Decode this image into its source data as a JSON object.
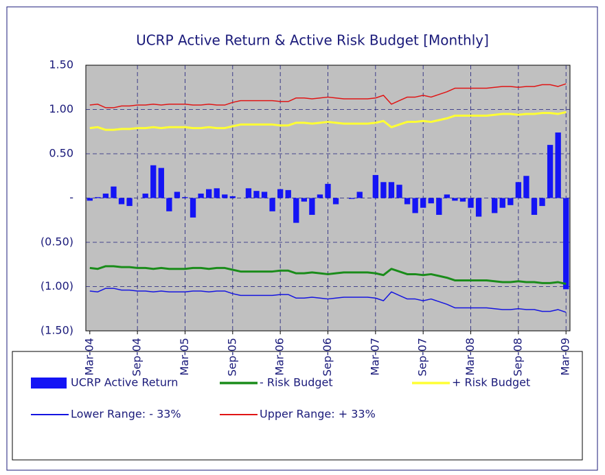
{
  "chart_data": {
    "type": "bar",
    "title": "UCRP Active Return & Active Risk Budget [Monthly]",
    "categories": [
      "Mar-04",
      null,
      null,
      null,
      null,
      null,
      "Sep-04",
      null,
      null,
      null,
      null,
      null,
      "Mar-05",
      null,
      null,
      null,
      null,
      null,
      "Sep-05",
      null,
      null,
      null,
      null,
      null,
      "Mar-06",
      null,
      null,
      null,
      null,
      null,
      "Sep-06",
      null,
      null,
      null,
      null,
      null,
      "Mar-07",
      null,
      null,
      null,
      null,
      null,
      "Sep-07",
      null,
      null,
      null,
      null,
      null,
      "Mar-08",
      null,
      null,
      null,
      null,
      null,
      "Sep-08",
      null,
      null,
      null,
      null,
      null,
      "Mar-09"
    ],
    "ylim": [
      -1.5,
      1.5
    ],
    "yticks": [
      {
        "value": 1.5,
        "label": "1.50"
      },
      {
        "value": 1.0,
        "label": "1.00"
      },
      {
        "value": 0.5,
        "label": "0.50"
      },
      {
        "value": 0,
        "label": "-"
      },
      {
        "value": -0.5,
        "label": "(0.50)"
      },
      {
        "value": -1.0,
        "label": "(1.00)"
      },
      {
        "value": -1.5,
        "label": "(1.50)"
      }
    ],
    "grid": true,
    "series": [
      {
        "name": "UCRP Active Return",
        "type": "bar",
        "color": "#1414f5",
        "values": [
          -0.03,
          0.01,
          0.05,
          0.13,
          -0.07,
          -0.09,
          0.0,
          0.05,
          0.37,
          0.34,
          -0.15,
          0.07,
          0.01,
          -0.22,
          0.05,
          0.1,
          0.11,
          0.04,
          0.02,
          0.0,
          0.11,
          0.08,
          0.07,
          -0.15,
          0.1,
          0.09,
          -0.28,
          -0.04,
          -0.19,
          0.04,
          0.16,
          -0.07,
          0.0,
          -0.01,
          0.07,
          0.0,
          0.26,
          0.18,
          0.18,
          0.15,
          -0.07,
          -0.17,
          -0.11,
          -0.06,
          -0.19,
          0.04,
          -0.03,
          -0.04,
          -0.11,
          -0.21,
          0.0,
          -0.17,
          -0.11,
          -0.08,
          0.18,
          0.25,
          -0.19,
          -0.09,
          0.6,
          0.74,
          -1.03
        ]
      },
      {
        "name": "- Risk Budget",
        "type": "line",
        "color": "#1a8c1a",
        "values": [
          -0.79,
          -0.8,
          -0.77,
          -0.77,
          -0.78,
          -0.78,
          -0.79,
          -0.79,
          -0.8,
          -0.79,
          -0.8,
          -0.8,
          -0.8,
          -0.79,
          -0.79,
          -0.8,
          -0.79,
          -0.79,
          -0.81,
          -0.83,
          -0.83,
          -0.83,
          -0.83,
          -0.83,
          -0.82,
          -0.82,
          -0.85,
          -0.85,
          -0.84,
          -0.85,
          -0.86,
          -0.85,
          -0.84,
          -0.84,
          -0.84,
          -0.84,
          -0.85,
          -0.87,
          -0.8,
          -0.83,
          -0.86,
          -0.86,
          -0.87,
          -0.86,
          -0.88,
          -0.9,
          -0.93,
          -0.93,
          -0.93,
          -0.93,
          -0.93,
          -0.94,
          -0.95,
          -0.95,
          -0.94,
          -0.95,
          -0.95,
          -0.96,
          -0.96,
          -0.95,
          -0.97
        ]
      },
      {
        "name": "+ Risk Budget",
        "type": "line",
        "color": "#ffff33",
        "values": [
          0.79,
          0.8,
          0.77,
          0.77,
          0.78,
          0.78,
          0.79,
          0.79,
          0.8,
          0.79,
          0.8,
          0.8,
          0.8,
          0.79,
          0.79,
          0.8,
          0.79,
          0.79,
          0.81,
          0.83,
          0.83,
          0.83,
          0.83,
          0.83,
          0.82,
          0.82,
          0.85,
          0.85,
          0.84,
          0.85,
          0.86,
          0.85,
          0.84,
          0.84,
          0.84,
          0.84,
          0.85,
          0.87,
          0.8,
          0.83,
          0.86,
          0.86,
          0.87,
          0.86,
          0.88,
          0.9,
          0.93,
          0.93,
          0.93,
          0.93,
          0.93,
          0.94,
          0.95,
          0.95,
          0.94,
          0.95,
          0.95,
          0.96,
          0.96,
          0.95,
          0.97
        ]
      },
      {
        "name": "Lower Range: - 33%",
        "type": "line",
        "color": "#1414e0",
        "values": [
          -1.05,
          -1.06,
          -1.02,
          -1.02,
          -1.04,
          -1.04,
          -1.05,
          -1.05,
          -1.06,
          -1.05,
          -1.06,
          -1.06,
          -1.06,
          -1.05,
          -1.05,
          -1.06,
          -1.05,
          -1.05,
          -1.08,
          -1.1,
          -1.1,
          -1.1,
          -1.1,
          -1.1,
          -1.09,
          -1.09,
          -1.13,
          -1.13,
          -1.12,
          -1.13,
          -1.14,
          -1.13,
          -1.12,
          -1.12,
          -1.12,
          -1.12,
          -1.13,
          -1.16,
          -1.06,
          -1.1,
          -1.14,
          -1.14,
          -1.16,
          -1.14,
          -1.17,
          -1.2,
          -1.24,
          -1.24,
          -1.24,
          -1.24,
          -1.24,
          -1.25,
          -1.26,
          -1.26,
          -1.25,
          -1.26,
          -1.26,
          -1.28,
          -1.28,
          -1.26,
          -1.29
        ]
      },
      {
        "name": "Upper Range: + 33%",
        "type": "line",
        "color": "#e01414",
        "values": [
          1.05,
          1.06,
          1.02,
          1.02,
          1.04,
          1.04,
          1.05,
          1.05,
          1.06,
          1.05,
          1.06,
          1.06,
          1.06,
          1.05,
          1.05,
          1.06,
          1.05,
          1.05,
          1.08,
          1.1,
          1.1,
          1.1,
          1.1,
          1.1,
          1.09,
          1.09,
          1.13,
          1.13,
          1.12,
          1.13,
          1.14,
          1.13,
          1.12,
          1.12,
          1.12,
          1.12,
          1.13,
          1.16,
          1.06,
          1.1,
          1.14,
          1.14,
          1.16,
          1.14,
          1.17,
          1.2,
          1.24,
          1.24,
          1.24,
          1.24,
          1.24,
          1.25,
          1.26,
          1.26,
          1.25,
          1.26,
          1.26,
          1.28,
          1.28,
          1.26,
          1.29
        ]
      }
    ]
  }
}
